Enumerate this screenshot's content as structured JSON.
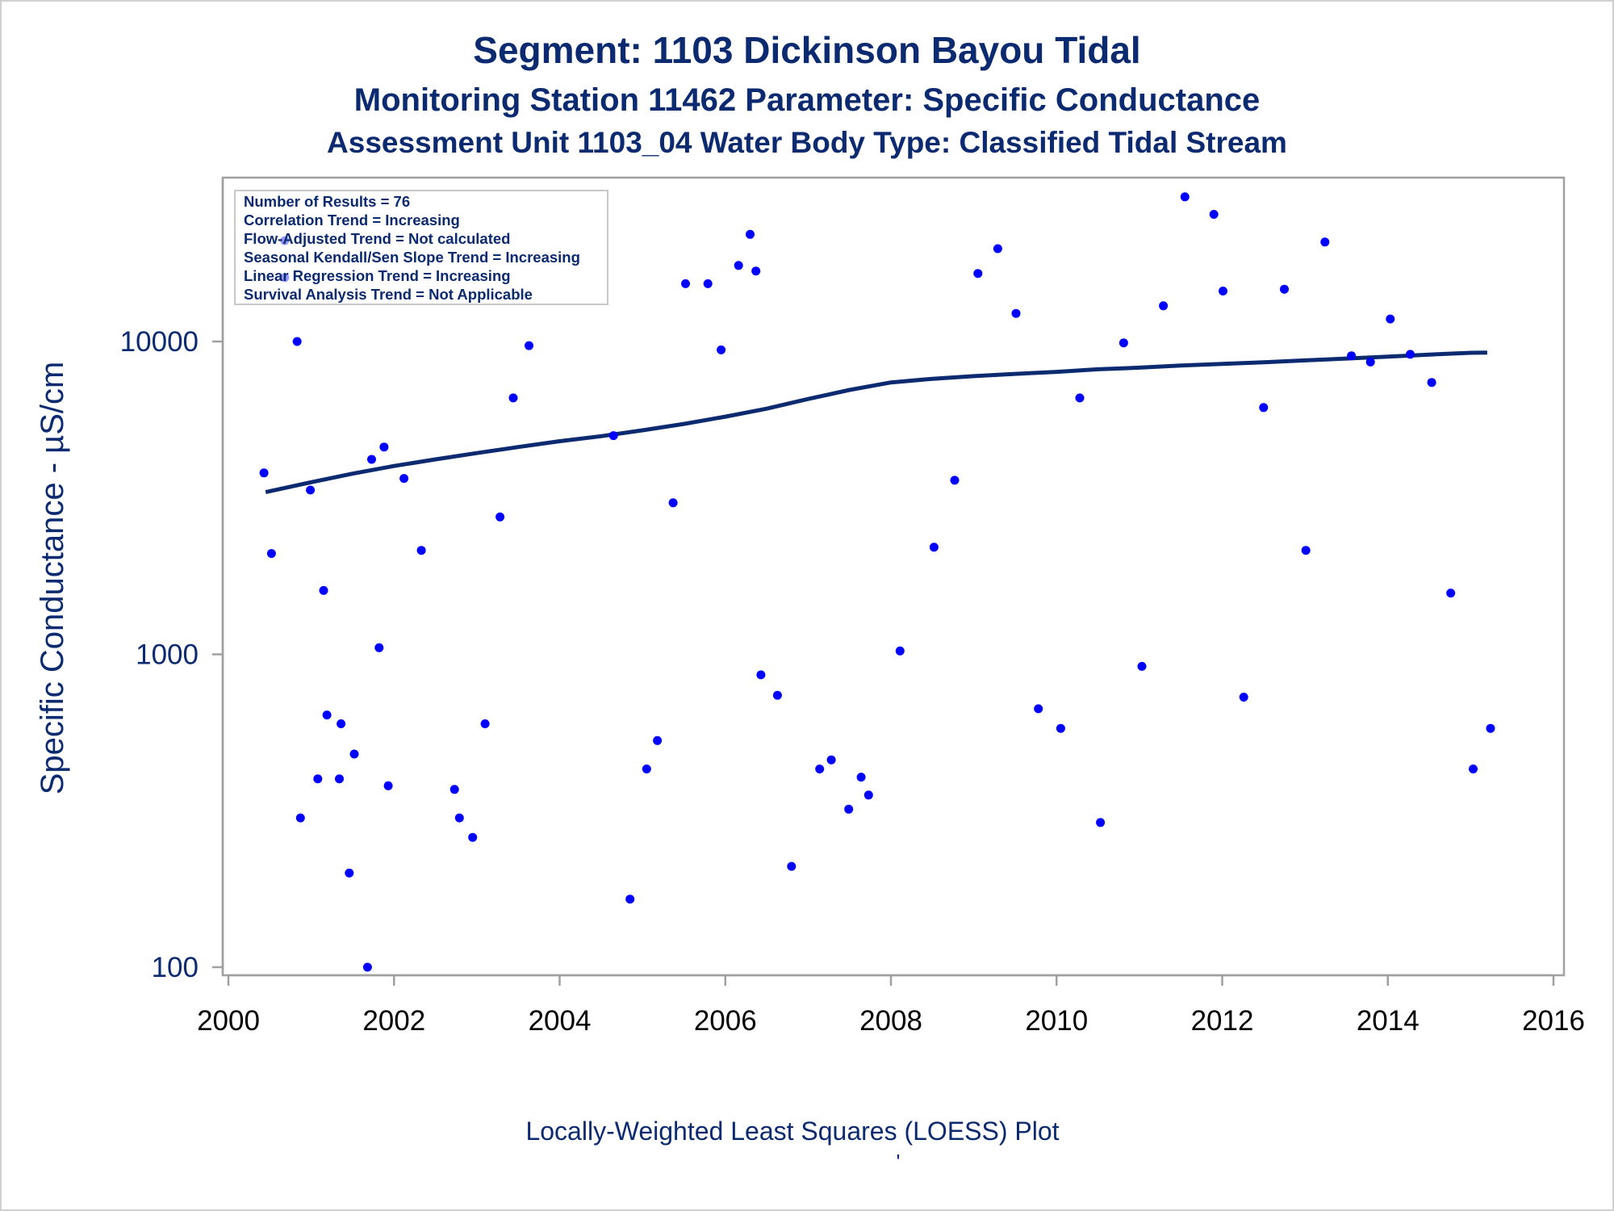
{
  "titles": {
    "line1": "Segment: 1103  Dickinson Bayou Tidal",
    "line2": "Monitoring Station 11462 Parameter: Specific Conductance",
    "line3": "Assessment Unit 1103_04   Water Body Type: Classified Tidal Stream"
  },
  "stats": [
    "Number of Results = 76",
    "Correlation Trend = Increasing",
    "Flow-Adjusted Trend = Not calculated",
    "Seasonal Kendall/Sen Slope Trend = Increasing",
    "Linear Regression Trend = Increasing",
    "Survival Analysis Trend = Not Applicable"
  ],
  "footer": {
    "caption": "Locally-Weighted Least Squares (LOESS) Plot",
    "mark": "'"
  },
  "colors": {
    "points": "#0000ff",
    "trend_line": "#0b2a6f",
    "text": "#0b2a6f",
    "frame": "#a0a0a0"
  },
  "chart_data": {
    "type": "scatter",
    "title": "Segment: 1103  Dickinson Bayou Tidal",
    "xlabel": "",
    "ylabel": "Specific Conductance -  µS/cm",
    "xlim": [
      2000,
      2016
    ],
    "ylim": [
      100,
      40000
    ],
    "y_scale": "log",
    "x_ticks": [
      2000,
      2002,
      2004,
      2006,
      2008,
      2010,
      2012,
      2014,
      2016
    ],
    "y_ticks": [
      100,
      1000,
      10000
    ],
    "grid": false,
    "legend_placement": "top-left",
    "series": [
      {
        "type": "scatter",
        "points": [
          [
            2000.43,
            3800
          ],
          [
            2000.52,
            2100
          ],
          [
            2000.68,
            21000
          ],
          [
            2000.68,
            16000
          ],
          [
            2000.83,
            10000
          ],
          [
            2000.87,
            300
          ],
          [
            2000.99,
            3350
          ],
          [
            2001.08,
            400
          ],
          [
            2001.15,
            1600
          ],
          [
            2001.19,
            640
          ],
          [
            2001.34,
            400
          ],
          [
            2001.36,
            600
          ],
          [
            2001.46,
            200
          ],
          [
            2001.52,
            480
          ],
          [
            2001.68,
            100
          ],
          [
            2001.73,
            4200
          ],
          [
            2001.82,
            1050
          ],
          [
            2001.88,
            4600
          ],
          [
            2001.93,
            380
          ],
          [
            2002.12,
            3650
          ],
          [
            2002.33,
            2150
          ],
          [
            2002.73,
            370
          ],
          [
            2002.79,
            300
          ],
          [
            2002.95,
            260
          ],
          [
            2003.1,
            600
          ],
          [
            2003.28,
            2750
          ],
          [
            2003.44,
            6600
          ],
          [
            2003.63,
            9700
          ],
          [
            2004.65,
            5000
          ],
          [
            2004.85,
            165
          ],
          [
            2005.05,
            430
          ],
          [
            2005.18,
            530
          ],
          [
            2005.37,
            3050
          ],
          [
            2005.52,
            15300
          ],
          [
            2005.79,
            15300
          ],
          [
            2005.95,
            9400
          ],
          [
            2006.16,
            17500
          ],
          [
            2006.3,
            22000
          ],
          [
            2006.37,
            16800
          ],
          [
            2006.43,
            860
          ],
          [
            2006.63,
            740
          ],
          [
            2006.8,
            210
          ],
          [
            2007.14,
            430
          ],
          [
            2007.28,
            460
          ],
          [
            2007.49,
            320
          ],
          [
            2007.64,
            405
          ],
          [
            2007.73,
            355
          ],
          [
            2008.11,
            1025
          ],
          [
            2008.52,
            2200
          ],
          [
            2008.77,
            3600
          ],
          [
            2009.05,
            16500
          ],
          [
            2009.29,
            19800
          ],
          [
            2009.51,
            12300
          ],
          [
            2009.78,
            670
          ],
          [
            2010.05,
            580
          ],
          [
            2010.28,
            6600
          ],
          [
            2010.53,
            290
          ],
          [
            2010.81,
            9900
          ],
          [
            2011.03,
            915
          ],
          [
            2011.29,
            13000
          ],
          [
            2011.55,
            29000
          ],
          [
            2011.9,
            25500
          ],
          [
            2012.01,
            14500
          ],
          [
            2012.26,
            730
          ],
          [
            2012.5,
            6150
          ],
          [
            2012.75,
            14700
          ],
          [
            2013.01,
            2150
          ],
          [
            2013.24,
            20800
          ],
          [
            2013.56,
            9000
          ],
          [
            2013.79,
            8600
          ],
          [
            2014.03,
            11800
          ],
          [
            2014.27,
            9100
          ],
          [
            2014.53,
            7400
          ],
          [
            2014.76,
            1570
          ],
          [
            2015.03,
            430
          ],
          [
            2015.24,
            580
          ]
        ]
      },
      {
        "type": "line",
        "points": [
          [
            2000.45,
            3300
          ],
          [
            2001.0,
            3550
          ],
          [
            2001.5,
            3780
          ],
          [
            2002.0,
            4000
          ],
          [
            2002.5,
            4200
          ],
          [
            2003.0,
            4400
          ],
          [
            2003.5,
            4600
          ],
          [
            2004.0,
            4800
          ],
          [
            2004.5,
            4980
          ],
          [
            2005.0,
            5200
          ],
          [
            2005.5,
            5450
          ],
          [
            2006.0,
            5750
          ],
          [
            2006.5,
            6100
          ],
          [
            2007.0,
            6550
          ],
          [
            2007.5,
            7000
          ],
          [
            2008.0,
            7400
          ],
          [
            2008.5,
            7600
          ],
          [
            2009.0,
            7750
          ],
          [
            2009.5,
            7880
          ],
          [
            2010.0,
            8000
          ],
          [
            2010.5,
            8150
          ],
          [
            2011.0,
            8250
          ],
          [
            2011.5,
            8380
          ],
          [
            2012.0,
            8480
          ],
          [
            2012.5,
            8580
          ],
          [
            2013.0,
            8700
          ],
          [
            2013.5,
            8820
          ],
          [
            2014.0,
            8950
          ],
          [
            2014.5,
            9080
          ],
          [
            2015.0,
            9200
          ],
          [
            2015.2,
            9220
          ]
        ]
      }
    ]
  }
}
